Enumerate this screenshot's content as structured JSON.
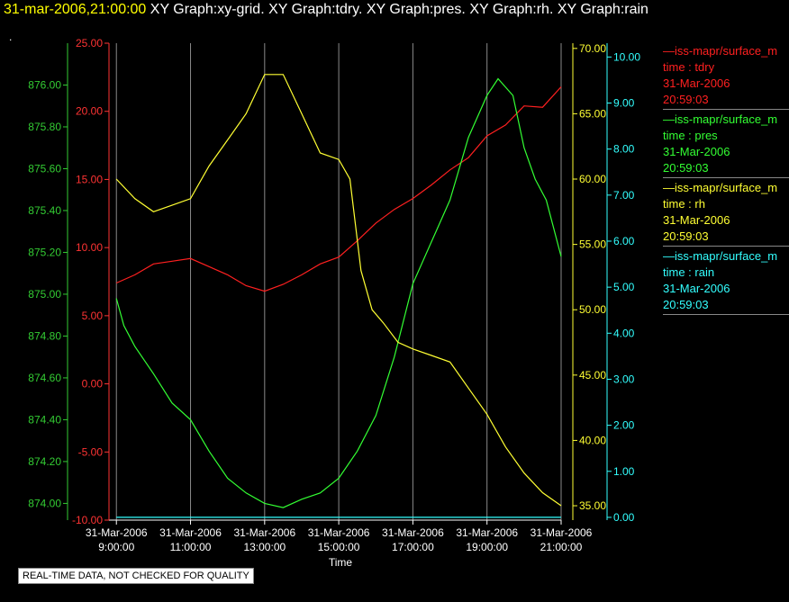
{
  "header": {
    "timestamp": "31-mar-2006,21:00:00",
    "graphs": "XY Graph:xy-grid.  XY Graph:tdry.  XY Graph:pres.  XY Graph:rh.  XY Graph:rain",
    "dot": "."
  },
  "legend": [
    {
      "name": "—iss-mapr/surface_m",
      "field": "time : tdry",
      "date": "31-Mar-2006",
      "time": "20:59:03",
      "color": "#ff2020"
    },
    {
      "name": "—iss-mapr/surface_m",
      "field": "time : pres",
      "date": "31-Mar-2006",
      "time": "20:59:03",
      "color": "#33ff33"
    },
    {
      "name": "—iss-mapr/surface_m",
      "field": "time : rh",
      "date": "31-Mar-2006",
      "time": "20:59:03",
      "color": "#ffff33"
    },
    {
      "name": "—iss-mapr/surface_m",
      "field": "time : rain",
      "date": "31-Mar-2006",
      "time": "20:59:03",
      "color": "#33ffff"
    }
  ],
  "disclaimer": "REAL-TIME DATA, NOT CHECKED FOR QUALITY",
  "chart_data": {
    "type": "line",
    "xlabel": "Time",
    "x_ticks": [
      {
        "x": 9,
        "line1": "31-Mar-2006",
        "line2": "9:00:00"
      },
      {
        "x": 11,
        "line1": "31-Mar-2006",
        "line2": "11:00:00"
      },
      {
        "x": 13,
        "line1": "31-Mar-2006",
        "line2": "13:00:00"
      },
      {
        "x": 15,
        "line1": "31-Mar-2006",
        "line2": "15:00:00"
      },
      {
        "x": 17,
        "line1": "31-Mar-2006",
        "line2": "17:00:00"
      },
      {
        "x": 19,
        "line1": "31-Mar-2006",
        "line2": "19:00:00"
      },
      {
        "x": 21,
        "line1": "31-Mar-2006",
        "line2": "21:00:00"
      }
    ],
    "xlim": [
      8.8,
      21.0
    ],
    "grid_x": true,
    "axes": [
      {
        "id": "pres",
        "color": "#33cc33",
        "side": "left-outer",
        "ylim": [
          873.92,
          876.2
        ],
        "ticks": [
          "874.00",
          "874.20",
          "874.40",
          "874.60",
          "874.80",
          "875.00",
          "875.20",
          "875.40",
          "875.60",
          "875.80",
          "876.00"
        ]
      },
      {
        "id": "tdry",
        "color": "#ff3333",
        "side": "left-inner",
        "ylim": [
          -10,
          25
        ],
        "ticks": [
          "-10.00",
          "-5.00",
          "0.00",
          "5.00",
          "10.00",
          "15.00",
          "20.00",
          "25.00"
        ]
      },
      {
        "id": "rh",
        "color": "#ffff33",
        "side": "right-inner",
        "ylim": [
          33.9,
          70.4
        ],
        "ticks": [
          "35.00",
          "40.00",
          "45.00",
          "50.00",
          "55.00",
          "60.00",
          "65.00",
          "70.00"
        ]
      },
      {
        "id": "rain",
        "color": "#33ffff",
        "side": "right-outer",
        "ylim": [
          -0.06,
          10.3
        ],
        "ticks": [
          "0.00",
          "1.00",
          "2.00",
          "3.00",
          "4.00",
          "5.00",
          "6.00",
          "7.00",
          "8.00",
          "9.00",
          "10.00"
        ]
      }
    ],
    "series": [
      {
        "axis": "tdry",
        "color": "#ff2020",
        "points": [
          [
            9.0,
            7.4
          ],
          [
            9.5,
            8.0
          ],
          [
            10.0,
            8.8
          ],
          [
            10.5,
            9.0
          ],
          [
            11.0,
            9.2
          ],
          [
            11.5,
            8.6
          ],
          [
            12.0,
            8.0
          ],
          [
            12.5,
            7.2
          ],
          [
            13.0,
            6.8
          ],
          [
            13.5,
            7.3
          ],
          [
            14.0,
            8.0
          ],
          [
            14.5,
            8.8
          ],
          [
            15.0,
            9.3
          ],
          [
            15.5,
            10.5
          ],
          [
            16.0,
            11.8
          ],
          [
            16.5,
            12.8
          ],
          [
            17.0,
            13.6
          ],
          [
            17.5,
            14.6
          ],
          [
            18.0,
            15.7
          ],
          [
            18.5,
            16.6
          ],
          [
            19.0,
            18.2
          ],
          [
            19.5,
            19.0
          ],
          [
            20.0,
            20.4
          ],
          [
            20.5,
            20.3
          ],
          [
            21.0,
            21.8
          ]
        ]
      },
      {
        "axis": "pres",
        "color": "#33ff33",
        "points": [
          [
            9.0,
            874.98
          ],
          [
            9.2,
            874.85
          ],
          [
            9.5,
            874.75
          ],
          [
            10.0,
            874.62
          ],
          [
            10.5,
            874.48
          ],
          [
            11.0,
            874.4
          ],
          [
            11.5,
            874.25
          ],
          [
            12.0,
            874.12
          ],
          [
            12.5,
            874.05
          ],
          [
            13.0,
            874.0
          ],
          [
            13.5,
            873.98
          ],
          [
            14.0,
            874.02
          ],
          [
            14.5,
            874.05
          ],
          [
            15.0,
            874.12
          ],
          [
            15.5,
            874.25
          ],
          [
            16.0,
            874.42
          ],
          [
            16.5,
            874.7
          ],
          [
            17.0,
            875.05
          ],
          [
            17.5,
            875.25
          ],
          [
            18.0,
            875.45
          ],
          [
            18.5,
            875.75
          ],
          [
            19.0,
            875.95
          ],
          [
            19.3,
            876.03
          ],
          [
            19.7,
            875.95
          ],
          [
            20.0,
            875.7
          ],
          [
            20.3,
            875.55
          ],
          [
            20.6,
            875.45
          ],
          [
            21.0,
            875.18
          ]
        ]
      },
      {
        "axis": "rh",
        "color": "#ffff33",
        "points": [
          [
            9.0,
            60.0
          ],
          [
            9.5,
            58.5
          ],
          [
            10.0,
            57.5
          ],
          [
            10.5,
            58.0
          ],
          [
            11.0,
            58.5
          ],
          [
            11.5,
            61.0
          ],
          [
            12.0,
            63.0
          ],
          [
            12.5,
            65.0
          ],
          [
            13.0,
            68.0
          ],
          [
            13.5,
            68.0
          ],
          [
            14.0,
            65.0
          ],
          [
            14.5,
            62.0
          ],
          [
            15.0,
            61.5
          ],
          [
            15.3,
            60.0
          ],
          [
            15.6,
            53.0
          ],
          [
            15.9,
            50.0
          ],
          [
            16.2,
            49.0
          ],
          [
            16.6,
            47.5
          ],
          [
            17.0,
            47.0
          ],
          [
            17.5,
            46.5
          ],
          [
            18.0,
            46.0
          ],
          [
            18.5,
            44.0
          ],
          [
            19.0,
            42.0
          ],
          [
            19.5,
            39.5
          ],
          [
            20.0,
            37.5
          ],
          [
            20.5,
            36.0
          ],
          [
            21.0,
            35.0
          ]
        ]
      },
      {
        "axis": "rain",
        "color": "#33ffff",
        "points": [
          [
            9.0,
            0.0
          ],
          [
            21.0,
            0.0
          ]
        ]
      }
    ]
  }
}
